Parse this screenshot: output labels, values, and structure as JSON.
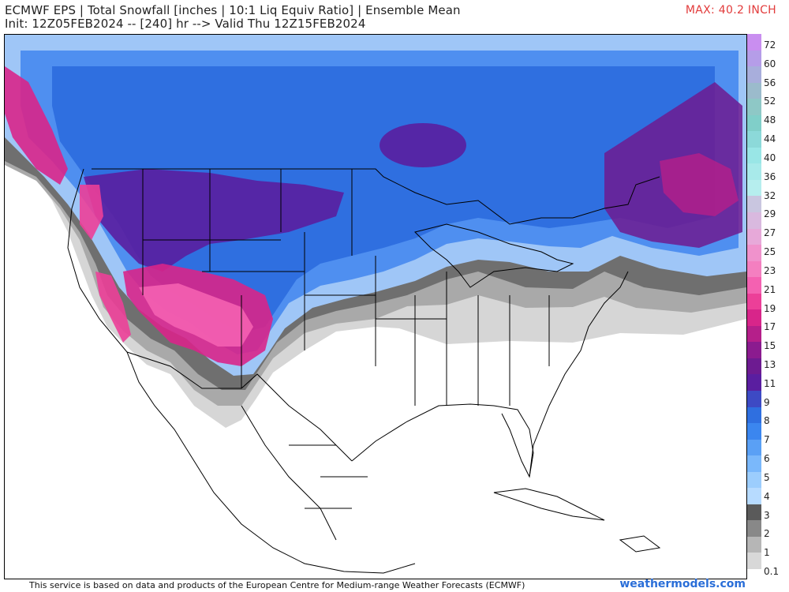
{
  "header": {
    "title": "ECMWF EPS | Total Snowfall [inches | 10:1 Liq Equiv Ratio] | Ensemble Mean",
    "subtitle": "Init: 12Z05FEB2024 -- [240] hr --> Valid Thu 12Z15FEB2024",
    "max_label": "MAX: 40.2 INCH"
  },
  "colorbar": {
    "labels": [
      "72",
      "60",
      "56",
      "52",
      "48",
      "44",
      "40",
      "36",
      "32",
      "29",
      "27",
      "25",
      "23",
      "21",
      "19",
      "17",
      "15",
      "13",
      "11",
      "9",
      "8",
      "7",
      "6",
      "5",
      "4",
      "3",
      "2",
      "1",
      "0.1"
    ],
    "colors": [
      "#c98ef0",
      "#b59de8",
      "#a8aedc",
      "#9bbbcc",
      "#8ec8c6",
      "#80cfc9",
      "#8cd9d9",
      "#99e6e6",
      "#a8eaea",
      "#b6eeee",
      "#c9c6e0",
      "#d9b9df",
      "#e7a9d9",
      "#f092cc",
      "#f47fc0",
      "#f461b1",
      "#ec3f98",
      "#d8258a",
      "#b51f8a",
      "#8b1b8f",
      "#6d1b91",
      "#5a1ea0",
      "#3d4ac4",
      "#2f6fe0",
      "#3b86ef",
      "#5aa0f5",
      "#7ab8fb",
      "#9ccdfd",
      "#b7dbff",
      "#5a5a5a",
      "#888888",
      "#b6b6b6",
      "#d8d8d8"
    ]
  },
  "footer": {
    "credit": "This service is based on data and products of the European Centre for Medium-range Weather Forecasts (ECMWF)",
    "brand": "weathermodels.com"
  }
}
